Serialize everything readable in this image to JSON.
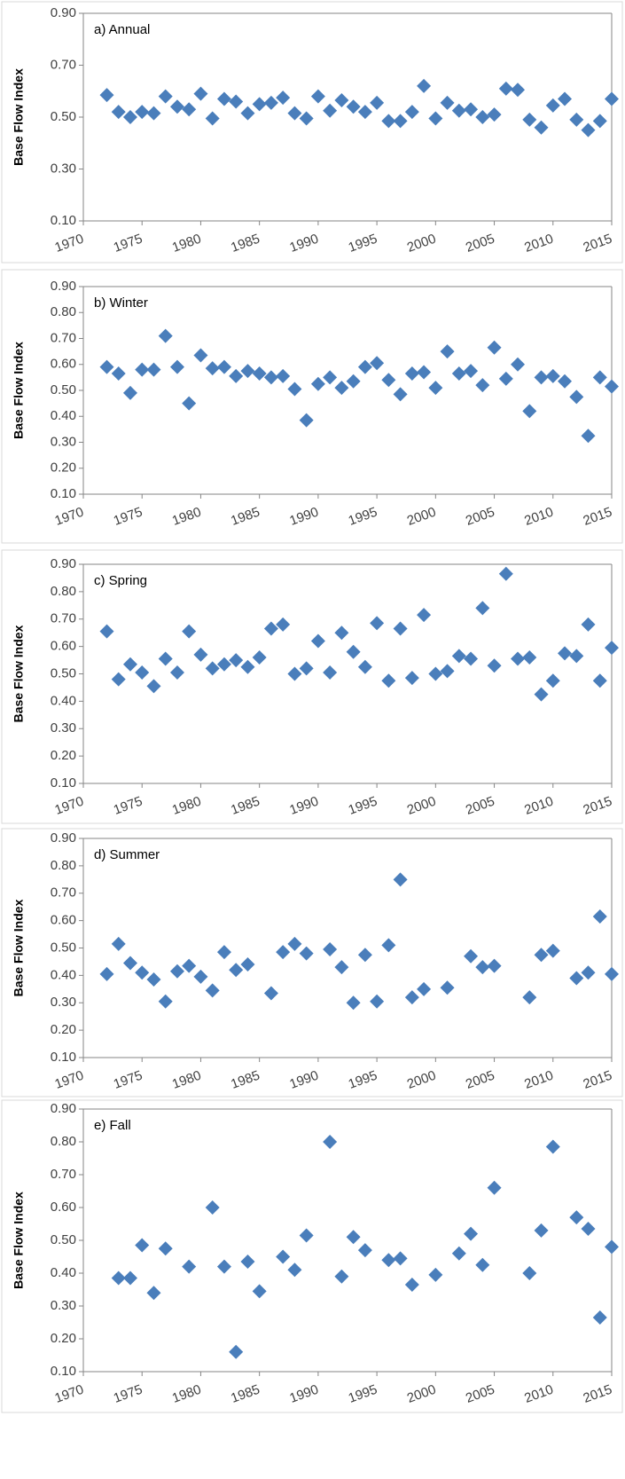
{
  "chart_data": [
    {
      "type": "scatter",
      "title": "a) Annual",
      "y_label": "Base Flow Index",
      "color": "#4a7ebb",
      "x": [
        1972,
        1973,
        1974,
        1975,
        1976,
        1977,
        1978,
        1979,
        1980,
        1981,
        1982,
        1983,
        1984,
        1985,
        1986,
        1987,
        1988,
        1989,
        1990,
        1991,
        1992,
        1993,
        1994,
        1995,
        1996,
        1997,
        1998,
        1999,
        2000,
        2001,
        2002,
        2003,
        2004,
        2005,
        2006,
        2007,
        2008,
        2009,
        2010,
        2011,
        2012,
        2013,
        2014,
        2015
      ],
      "values": [
        0.585,
        0.52,
        0.5,
        0.52,
        0.515,
        0.58,
        0.54,
        0.53,
        0.59,
        0.495,
        0.57,
        0.56,
        0.515,
        0.55,
        0.555,
        0.575,
        0.515,
        0.495,
        0.58,
        0.525,
        0.565,
        0.54,
        0.52,
        0.555,
        0.485,
        0.485,
        0.52,
        0.62,
        0.495,
        0.555,
        0.525,
        0.53,
        0.5,
        0.51,
        0.61,
        0.605,
        0.49,
        0.46,
        0.545,
        0.57,
        0.49,
        0.45,
        0.485,
        0.57
      ],
      "xlim": [
        1970,
        2015
      ],
      "xticks": [
        1970,
        1975,
        1980,
        1985,
        1990,
        1995,
        2000,
        2005,
        2010,
        2015
      ],
      "ylim": [
        0.1,
        0.9
      ],
      "yticks": [
        {
          "value": 0.1,
          "label": "0.10"
        },
        {
          "value": 0.3,
          "label": "0.30"
        },
        {
          "value": 0.5,
          "label": "0.50"
        },
        {
          "value": 0.7,
          "label": "0.70"
        },
        {
          "value": 0.9,
          "label": "0.90"
        }
      ]
    },
    {
      "type": "scatter",
      "title": "b) Winter",
      "y_label": "Base Flow Index",
      "color": "#4a7ebb",
      "x": [
        1972,
        1973,
        1974,
        1975,
        1976,
        1977,
        1978,
        1979,
        1980,
        1981,
        1982,
        1983,
        1984,
        1985,
        1986,
        1987,
        1988,
        1989,
        1990,
        1991,
        1992,
        1993,
        1994,
        1995,
        1996,
        1997,
        1998,
        1999,
        2000,
        2001,
        2002,
        2003,
        2004,
        2005,
        2006,
        2007,
        2008,
        2009,
        2010,
        2011,
        2012,
        2013,
        2014,
        2015
      ],
      "values": [
        0.59,
        0.565,
        0.49,
        0.58,
        0.58,
        0.71,
        0.59,
        0.45,
        0.635,
        0.585,
        0.59,
        0.555,
        0.575,
        0.565,
        0.55,
        0.555,
        0.505,
        0.385,
        0.525,
        0.55,
        0.51,
        0.535,
        0.59,
        0.605,
        0.54,
        0.485,
        0.565,
        0.57,
        0.51,
        0.65,
        0.565,
        0.575,
        0.52,
        0.665,
        0.545,
        0.6,
        0.42,
        0.55,
        0.555,
        0.535,
        0.475,
        0.325,
        0.55,
        0.515
      ],
      "xlim": [
        1970,
        2015
      ],
      "xticks": [
        1970,
        1975,
        1980,
        1985,
        1990,
        1995,
        2000,
        2005,
        2010,
        2015
      ],
      "ylim": [
        0.1,
        0.9
      ],
      "yticks": [
        {
          "value": 0.1,
          "label": "0.10"
        },
        {
          "value": 0.2,
          "label": "0.20"
        },
        {
          "value": 0.3,
          "label": "0.30"
        },
        {
          "value": 0.4,
          "label": "0.40"
        },
        {
          "value": 0.5,
          "label": "0.50"
        },
        {
          "value": 0.6,
          "label": "0.60"
        },
        {
          "value": 0.7,
          "label": "0.70"
        },
        {
          "value": 0.8,
          "label": "0.80"
        },
        {
          "value": 0.9,
          "label": "0.90"
        }
      ]
    },
    {
      "type": "scatter",
      "title": "c) Spring",
      "y_label": "Base Flow Index",
      "color": "#4a7ebb",
      "x": [
        1972,
        1973,
        1974,
        1975,
        1976,
        1977,
        1978,
        1979,
        1980,
        1981,
        1982,
        1983,
        1984,
        1985,
        1986,
        1987,
        1988,
        1989,
        1990,
        1991,
        1992,
        1993,
        1994,
        1995,
        1996,
        1997,
        1998,
        1999,
        2000,
        2001,
        2002,
        2003,
        2004,
        2005,
        2006,
        2007,
        2008,
        2009,
        2010,
        2011,
        2012,
        2013,
        2014,
        2015
      ],
      "values": [
        0.655,
        0.48,
        0.535,
        0.505,
        0.455,
        0.555,
        0.505,
        0.655,
        0.57,
        0.52,
        0.535,
        0.55,
        0.525,
        0.56,
        0.665,
        0.68,
        0.5,
        0.52,
        0.62,
        0.505,
        0.65,
        0.58,
        0.525,
        0.685,
        0.475,
        0.665,
        0.485,
        0.715,
        0.5,
        0.51,
        0.565,
        0.555,
        0.74,
        0.53,
        0.865,
        0.555,
        0.56,
        0.425,
        0.475,
        0.575,
        0.565,
        0.68,
        0.475,
        0.595
      ],
      "xlim": [
        1970,
        2015
      ],
      "xticks": [
        1970,
        1975,
        1980,
        1985,
        1990,
        1995,
        2000,
        2005,
        2010,
        2015
      ],
      "ylim": [
        0.1,
        0.9
      ],
      "yticks": [
        {
          "value": 0.1,
          "label": "0.10"
        },
        {
          "value": 0.2,
          "label": "0.20"
        },
        {
          "value": 0.3,
          "label": "0.30"
        },
        {
          "value": 0.4,
          "label": "0.40"
        },
        {
          "value": 0.5,
          "label": "0.50"
        },
        {
          "value": 0.6,
          "label": "0.60"
        },
        {
          "value": 0.7,
          "label": "0.70"
        },
        {
          "value": 0.8,
          "label": "0.80"
        },
        {
          "value": 0.9,
          "label": "0.90"
        }
      ]
    },
    {
      "type": "scatter",
      "title": "d) Summer",
      "y_label": "Base Flow Index",
      "color": "#4a7ebb",
      "x": [
        1972,
        1973,
        1974,
        1975,
        1976,
        1977,
        1978,
        1979,
        1980,
        1981,
        1982,
        1983,
        1984,
        1986,
        1987,
        1988,
        1989,
        1991,
        1992,
        1993,
        1994,
        1995,
        1996,
        1997,
        1998,
        1999,
        2001,
        2003,
        2004,
        2005,
        2008,
        2009,
        2010,
        2012,
        2013,
        2014,
        2015
      ],
      "values": [
        0.405,
        0.515,
        0.445,
        0.41,
        0.385,
        0.305,
        0.415,
        0.435,
        0.395,
        0.345,
        0.485,
        0.42,
        0.44,
        0.335,
        0.485,
        0.515,
        0.48,
        0.495,
        0.43,
        0.3,
        0.475,
        0.305,
        0.51,
        0.75,
        0.32,
        0.35,
        0.355,
        0.47,
        0.43,
        0.435,
        0.32,
        0.475,
        0.49,
        0.39,
        0.41,
        0.615,
        0.405
      ],
      "xlim": [
        1970,
        2015
      ],
      "xticks": [
        1970,
        1975,
        1980,
        1985,
        1990,
        1995,
        2000,
        2005,
        2010,
        2015
      ],
      "ylim": [
        0.1,
        0.9
      ],
      "yticks": [
        {
          "value": 0.1,
          "label": "0.10"
        },
        {
          "value": 0.2,
          "label": "0.20"
        },
        {
          "value": 0.3,
          "label": "0.30"
        },
        {
          "value": 0.4,
          "label": "0.40"
        },
        {
          "value": 0.5,
          "label": "0.50"
        },
        {
          "value": 0.6,
          "label": "0.60"
        },
        {
          "value": 0.7,
          "label": "0.70"
        },
        {
          "value": 0.8,
          "label": "0.80"
        },
        {
          "value": 0.9,
          "label": "0.90"
        }
      ]
    },
    {
      "type": "scatter",
      "title": "e) Fall",
      "y_label": "Base Flow Index",
      "color": "#4a7ebb",
      "x": [
        1973,
        1974,
        1975,
        1976,
        1977,
        1979,
        1981,
        1982,
        1983,
        1984,
        1985,
        1987,
        1988,
        1989,
        1991,
        1992,
        1993,
        1994,
        1996,
        1997,
        1998,
        2000,
        2002,
        2003,
        2004,
        2005,
        2008,
        2009,
        2010,
        2012,
        2013,
        2014,
        2015
      ],
      "values": [
        0.385,
        0.385,
        0.485,
        0.34,
        0.475,
        0.42,
        0.6,
        0.42,
        0.16,
        0.435,
        0.345,
        0.45,
        0.41,
        0.515,
        0.8,
        0.39,
        0.51,
        0.47,
        0.44,
        0.445,
        0.365,
        0.395,
        0.46,
        0.52,
        0.425,
        0.66,
        0.4,
        0.53,
        0.785,
        0.57,
        0.535,
        0.265,
        0.48
      ],
      "xlim": [
        1970,
        2015
      ],
      "xticks": [
        1970,
        1975,
        1980,
        1985,
        1990,
        1995,
        2000,
        2005,
        2010,
        2015
      ],
      "ylim": [
        0.1,
        0.9
      ],
      "yticks": [
        {
          "value": 0.1,
          "label": "0.10"
        },
        {
          "value": 0.2,
          "label": "0.20"
        },
        {
          "value": 0.3,
          "label": "0.30"
        },
        {
          "value": 0.4,
          "label": "0.40"
        },
        {
          "value": 0.5,
          "label": "0.50"
        },
        {
          "value": 0.6,
          "label": "0.60"
        },
        {
          "value": 0.7,
          "label": "0.70"
        },
        {
          "value": 0.8,
          "label": "0.80"
        },
        {
          "value": 0.9,
          "label": "0.90"
        }
      ]
    }
  ]
}
